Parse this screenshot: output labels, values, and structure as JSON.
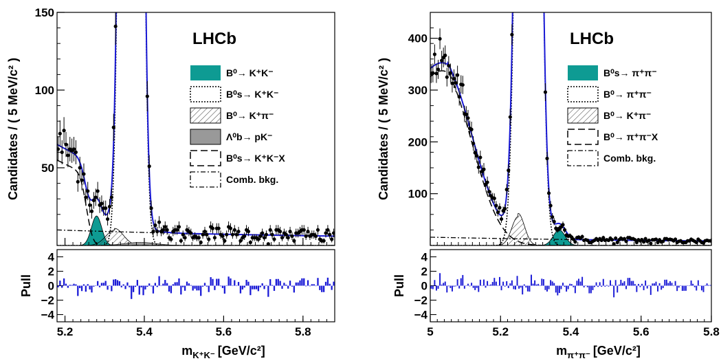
{
  "chart_data": [
    {
      "type": "line",
      "panel": "left",
      "brand": "LHCb",
      "ylabel": "Candidates / ( 5 MeV/c² )",
      "xlabel": "m",
      "xlabel_sub": "K⁺K⁻",
      "xlabel_unit": "[GeV/c²]",
      "xlim": [
        5.18,
        5.88
      ],
      "ylim": [
        0,
        150
      ],
      "xticks": [
        {
          "value": 5.2,
          "label": "5.2"
        },
        {
          "value": 5.4,
          "label": "5.4"
        },
        {
          "value": 5.6,
          "label": "5.6"
        },
        {
          "value": 5.8,
          "label": "5.8"
        }
      ],
      "yticks": [
        {
          "value": 50,
          "label": "50"
        },
        {
          "value": 100,
          "label": "100"
        },
        {
          "value": 150,
          "label": "150"
        }
      ],
      "pull_label": "Pull",
      "pull_ylim": [
        -5,
        5
      ],
      "pull_ticks": [
        {
          "value": 4,
          "label": "4"
        },
        {
          "value": 2,
          "label": "2"
        },
        {
          "value": 0,
          "label": "0"
        },
        {
          "value": -2,
          "label": "−2"
        },
        {
          "value": -4,
          "label": "−4"
        }
      ],
      "components": {
        "signal": {
          "mean": 5.3669,
          "sigma": 0.016,
          "amp": 2200
        },
        "minor": {
          "mean": 5.2796,
          "sigma": 0.013,
          "amp": 19
        },
        "misid": {
          "mean": 5.325,
          "sigma": 0.022,
          "amp": 11
        },
        "lambda": {
          "mean": 5.39,
          "sigma": 0.04,
          "amp": 2
        },
        "partial": {
          "edge": 5.255,
          "amp": 55,
          "slope": 8
        },
        "comb": {
          "a": 7,
          "b": 3
        }
      },
      "legend": [
        {
          "style": "teal",
          "text": "B⁰→ K⁺K⁻"
        },
        {
          "style": "dotted",
          "text": "B⁰s→ K⁺K⁻"
        },
        {
          "style": "hatch",
          "text": "B⁰→ K⁺π⁻"
        },
        {
          "style": "gray",
          "text": "Λ⁰b→ pK⁻"
        },
        {
          "style": "dashed",
          "text": "B⁰s→ K⁺K⁻X"
        },
        {
          "style": "dashdot",
          "text": "Comb. bkg."
        }
      ],
      "colors": {
        "signal": "#0e9b93",
        "fit": "#1a1ad6",
        "pull": "#1a1ad6",
        "hatch": "#555555",
        "gray": "#999999"
      }
    },
    {
      "type": "line",
      "panel": "right",
      "brand": "LHCb",
      "ylabel": "Candidates / ( 5 MeV/c² )",
      "xlabel": "m",
      "xlabel_sub": "π⁺π⁻",
      "xlabel_unit": "[GeV/c²]",
      "xlim": [
        5.0,
        5.8
      ],
      "ylim": [
        0,
        450
      ],
      "xticks": [
        {
          "value": 5.0,
          "label": "5"
        },
        {
          "value": 5.2,
          "label": "5.2"
        },
        {
          "value": 5.4,
          "label": "5.4"
        },
        {
          "value": 5.6,
          "label": "5.6"
        },
        {
          "value": 5.8,
          "label": "5.8"
        }
      ],
      "yticks": [
        {
          "value": 100,
          "label": "100"
        },
        {
          "value": 200,
          "label": "200"
        },
        {
          "value": 300,
          "label": "300"
        },
        {
          "value": 400,
          "label": "400"
        }
      ],
      "pull_label": "Pull",
      "pull_ylim": [
        -5,
        5
      ],
      "pull_ticks": [
        {
          "value": 4,
          "label": "4"
        },
        {
          "value": 2,
          "label": "2"
        },
        {
          "value": 0,
          "label": "0"
        },
        {
          "value": -2,
          "label": "−2"
        },
        {
          "value": -4,
          "label": "−4"
        }
      ],
      "components": {
        "signal": {
          "mean": 5.2796,
          "sigma": 0.021,
          "amp": 4000
        },
        "minor": {
          "mean": 5.3669,
          "sigma": 0.017,
          "amp": 30
        },
        "misid": {
          "mean": 5.25,
          "sigma": 0.018,
          "amp": 62
        },
        "partial": {
          "edge": 5.12,
          "amp": 390,
          "width": 0.1
        },
        "comb": {
          "a": 12,
          "b": 4
        }
      },
      "legend": [
        {
          "style": "teal",
          "text": "B⁰s→ π⁺π⁻"
        },
        {
          "style": "dotted",
          "text": "B⁰→ π⁺π⁻"
        },
        {
          "style": "hatch",
          "text": "B⁰→ K⁺π⁻"
        },
        {
          "style": "dashed",
          "text": "B⁰→ π⁺π⁻X"
        },
        {
          "style": "dashdot",
          "text": "Comb. bkg."
        }
      ],
      "colors": {
        "signal": "#0e9b93",
        "fit": "#1a1ad6",
        "pull": "#1a1ad6",
        "hatch": "#555555",
        "gray": "#999999"
      }
    }
  ]
}
